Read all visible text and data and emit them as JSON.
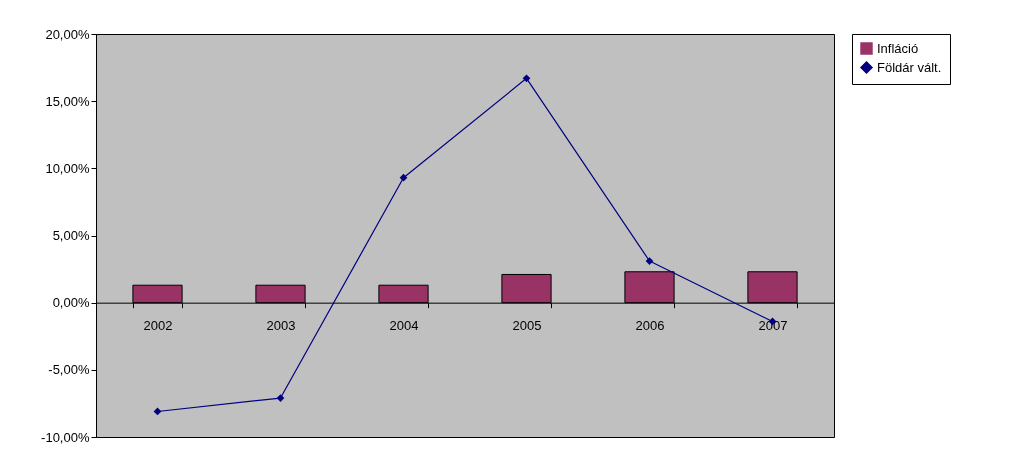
{
  "chart_data": {
    "type": "bar",
    "categories": [
      "2002",
      "2003",
      "2004",
      "2005",
      "2006",
      "2007"
    ],
    "series": [
      {
        "name": "Infláció",
        "color": "#993366",
        "values": [
          1.3,
          1.3,
          1.3,
          2.1,
          2.3,
          2.3
        ]
      },
      {
        "name": "Földár vált.",
        "type": "line",
        "color": "#000080",
        "marker": "diamond",
        "values": [
          -8.1,
          -7.1,
          9.3,
          16.7,
          3.1,
          -1.4
        ]
      }
    ],
    "ylim": [
      -10,
      20
    ],
    "yticks": [
      {
        "value": -10,
        "label": "-10,00%"
      },
      {
        "value": -5,
        "label": "-5,00%"
      },
      {
        "value": 0,
        "label": "0,00%"
      },
      {
        "value": 5,
        "label": "5,00%"
      },
      {
        "value": 10,
        "label": "10,00%"
      },
      {
        "value": 15,
        "label": "15,00%"
      },
      {
        "value": 20,
        "label": "20,00%"
      }
    ],
    "grid": false,
    "legend": "right"
  }
}
